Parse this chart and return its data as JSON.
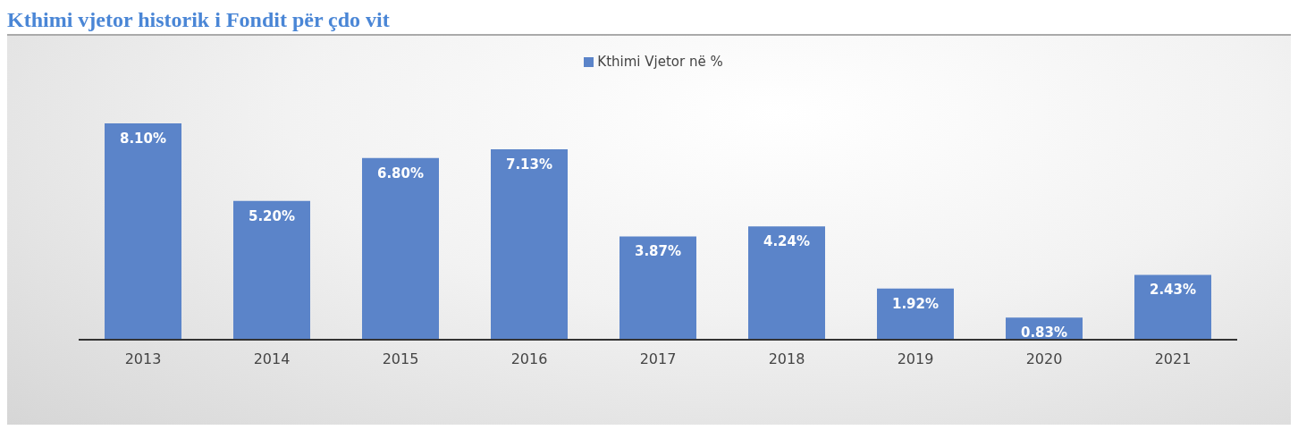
{
  "chart_data": {
    "type": "bar",
    "title": "Kthimi vjetor historik i Fondit për çdo vit",
    "categories": [
      "2013",
      "2014",
      "2015",
      "2016",
      "2017",
      "2018",
      "2019",
      "2020",
      "2021"
    ],
    "series": [
      {
        "name": "Kthimi Vjetor në %",
        "color": "#5b84c9",
        "values": [
          8.1,
          5.2,
          6.8,
          7.13,
          3.87,
          4.24,
          1.92,
          0.83,
          2.43
        ],
        "value_labels": [
          "8.10%",
          "5.20%",
          "6.80%",
          "7.13%",
          "3.87%",
          "4.24%",
          "1.92%",
          "0.83%",
          "2.43%"
        ]
      }
    ],
    "legend": "top",
    "grid": false
  }
}
